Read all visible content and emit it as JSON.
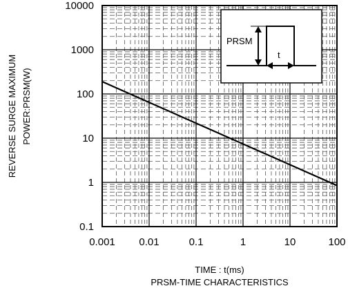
{
  "chart_data": {
    "type": "line",
    "title": "PRSM-TIME CHARACTERISTICS",
    "xlabel": "TIME : t(ms)",
    "ylabel_line1": "REVERSE   SURGE MAXIMUM",
    "ylabel_line2": "POWER:PRSM(W)",
    "x_scale": "log",
    "y_scale": "log",
    "xlim": [
      0.001,
      100
    ],
    "ylim": [
      0.1,
      10000
    ],
    "x_ticks": [
      "0.001",
      "0.01",
      "0.1",
      "1",
      "10",
      "100"
    ],
    "y_ticks": [
      "10000",
      "1000",
      "100",
      "10",
      "1",
      "0.1"
    ],
    "grid": true,
    "series": [
      {
        "x": [
          0.001,
          100
        ],
        "y": [
          190,
          0.85
        ]
      }
    ],
    "inset": {
      "label_prsm": "PRSM",
      "label_t": "t"
    }
  }
}
